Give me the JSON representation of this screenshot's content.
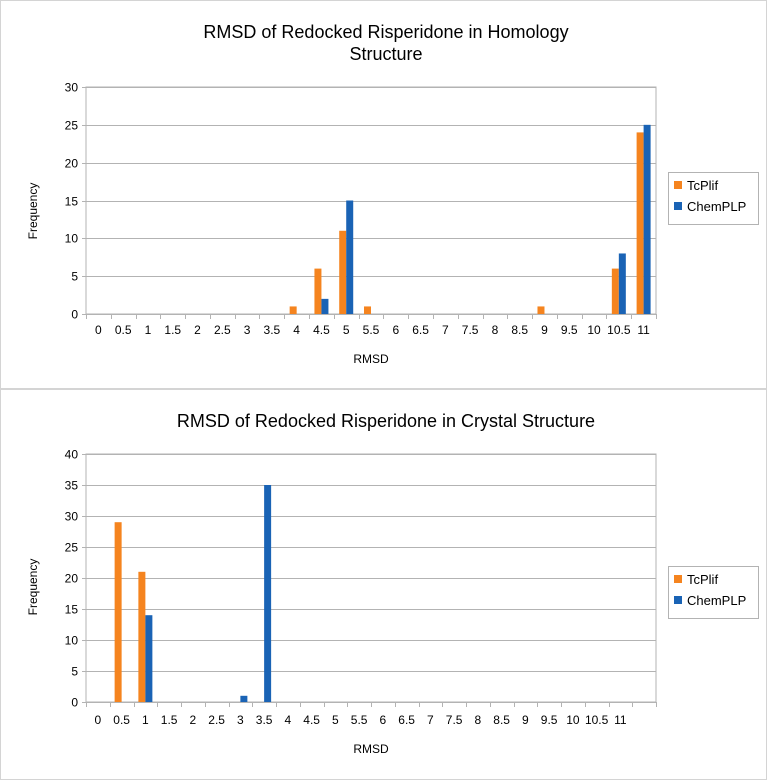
{
  "chart_data": [
    {
      "type": "bar",
      "title_lines": [
        "RMSD of Redocked Risperidone in Homology",
        "Structure"
      ],
      "xlabel": "RMSD",
      "ylabel": "Frequency",
      "ylim": [
        0,
        30
      ],
      "yticks": [
        0,
        5,
        10,
        15,
        20,
        25,
        30
      ],
      "grid": "horizontal",
      "legend_position": "right",
      "categories": [
        "0",
        "0.5",
        "1",
        "1.5",
        "2",
        "2.5",
        "3",
        "3.5",
        "4",
        "4.5",
        "5",
        "5.5",
        "6",
        "6.5",
        "7",
        "7.5",
        "8",
        "8.5",
        "9",
        "9.5",
        "10",
        "10.5",
        "11"
      ],
      "series": [
        {
          "name": "TcPlif",
          "color": "#f5841f",
          "values": [
            0,
            0,
            0,
            0,
            0,
            0,
            0,
            0,
            1,
            6,
            11,
            1,
            0,
            0,
            0,
            0,
            0,
            0,
            1,
            0,
            0,
            6,
            24
          ]
        },
        {
          "name": "ChemPLP",
          "color": "#1a63b5",
          "values": [
            0,
            0,
            0,
            0,
            0,
            0,
            0,
            0,
            0,
            2,
            15,
            0,
            0,
            0,
            0,
            0,
            0,
            0,
            0,
            0,
            0,
            8,
            25
          ]
        }
      ]
    },
    {
      "type": "bar",
      "title_lines": [
        "RMSD of Redocked Risperidone in  Crystal Structure"
      ],
      "xlabel": "RMSD",
      "ylabel": "Frequency",
      "ylim": [
        0,
        40
      ],
      "yticks": [
        0,
        5,
        10,
        15,
        20,
        25,
        30,
        35,
        40
      ],
      "grid": "horizontal",
      "legend_position": "right",
      "categories": [
        "0",
        "0.5",
        "1",
        "1.5",
        "2",
        "2.5",
        "3",
        "3.5",
        "4",
        "4.5",
        "5",
        "5.5",
        "6",
        "6.5",
        "7",
        "7.5",
        "8",
        "8.5",
        "9",
        "9.5",
        "10",
        "10.5",
        "11",
        ""
      ],
      "series": [
        {
          "name": "TcPlif",
          "color": "#f5841f",
          "values": [
            0,
            29,
            21,
            0,
            0,
            0,
            0,
            0,
            0,
            0,
            0,
            0,
            0,
            0,
            0,
            0,
            0,
            0,
            0,
            0,
            0,
            0,
            0,
            0
          ]
        },
        {
          "name": "ChemPLP",
          "color": "#1a63b5",
          "values": [
            0,
            0,
            14,
            0,
            0,
            0,
            1,
            35,
            0,
            0,
            0,
            0,
            0,
            0,
            0,
            0,
            0,
            0,
            0,
            0,
            0,
            0,
            0,
            0
          ]
        }
      ]
    }
  ]
}
